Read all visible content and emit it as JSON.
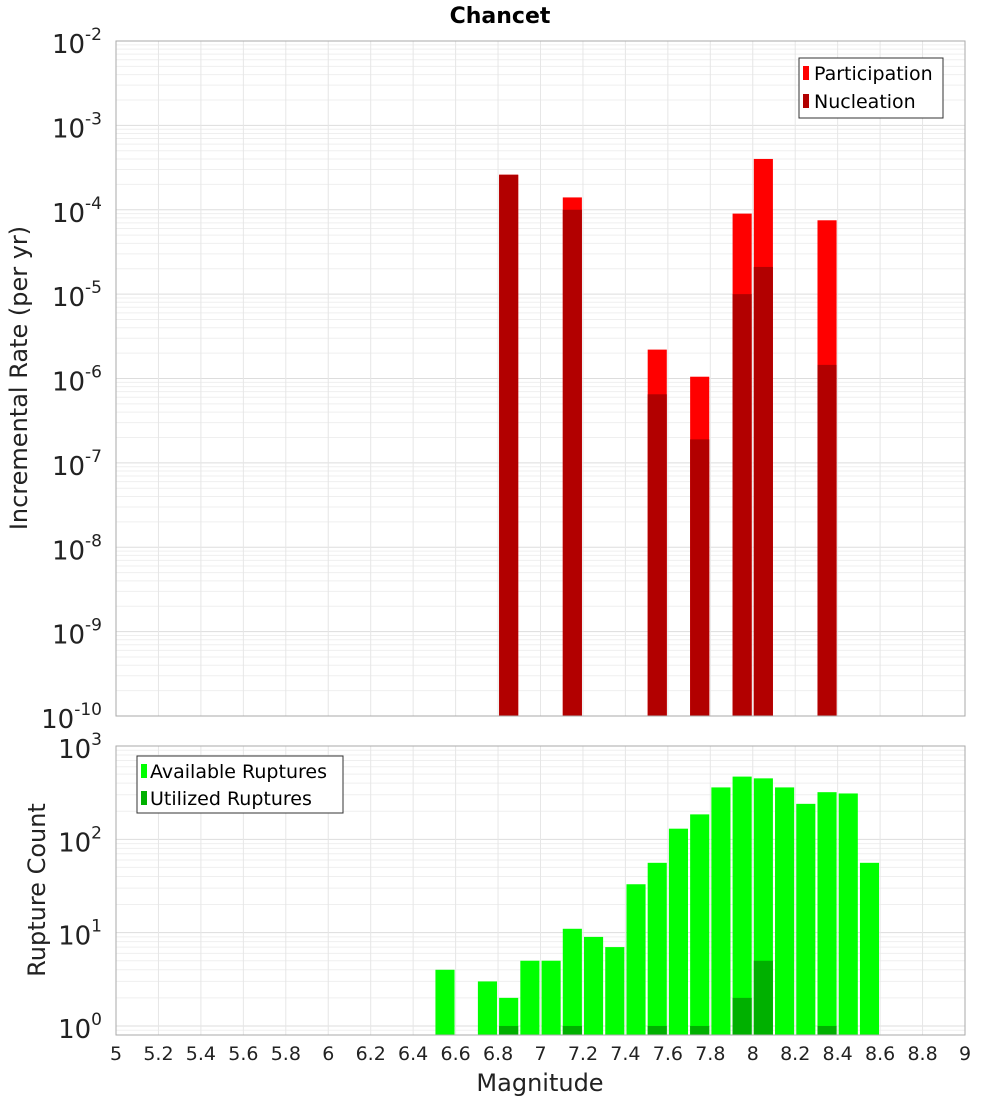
{
  "title": "Chancet",
  "chart_data": [
    {
      "type": "bar",
      "ylabel": "Incremental Rate (per yr)",
      "yscale": "log",
      "ylim": [
        1e-10,
        0.01
      ],
      "yticks": [
        {
          "base": "10",
          "exp": "-10"
        },
        {
          "base": "10",
          "exp": "-9"
        },
        {
          "base": "10",
          "exp": "-8"
        },
        {
          "base": "10",
          "exp": "-7"
        },
        {
          "base": "10",
          "exp": "-6"
        },
        {
          "base": "10",
          "exp": "-5"
        },
        {
          "base": "10",
          "exp": "-4"
        },
        {
          "base": "10",
          "exp": "-3"
        },
        {
          "base": "10",
          "exp": "-2"
        }
      ],
      "legend_position": "top-right",
      "series": [
        {
          "name": "Participation",
          "color": "#ff0000",
          "x": [
            6.85,
            7.15,
            7.55,
            7.75,
            7.95,
            8.05,
            8.35
          ],
          "values": [
            0.00026,
            0.00014,
            2.2e-06,
            1.05e-06,
            9e-05,
            0.0004,
            7.5e-05
          ]
        },
        {
          "name": "Nucleation",
          "color": "#b20000",
          "x": [
            6.85,
            7.15,
            7.55,
            7.75,
            7.95,
            8.05,
            8.35
          ],
          "values": [
            0.00026,
            0.0001,
            6.5e-07,
            1.9e-07,
            1e-05,
            2.1e-05,
            1.45e-06
          ]
        }
      ]
    },
    {
      "type": "bar",
      "xlabel": "Magnitude",
      "ylabel": "Rupture Count",
      "xlim": [
        5,
        9
      ],
      "xticks": [
        "5",
        "5.2",
        "5.4",
        "5.6",
        "5.8",
        "6",
        "6.2",
        "6.4",
        "6.6",
        "6.8",
        "7",
        "7.2",
        "7.4",
        "7.6",
        "7.8",
        "8",
        "8.2",
        "8.4",
        "8.6",
        "8.8",
        "9"
      ],
      "yscale": "log",
      "ylim": [
        0.8,
        1000
      ],
      "yticks": [
        {
          "base": "10",
          "exp": "0"
        },
        {
          "base": "10",
          "exp": "1"
        },
        {
          "base": "10",
          "exp": "2"
        },
        {
          "base": "10",
          "exp": "3"
        }
      ],
      "legend_position": "top-left",
      "series": [
        {
          "name": "Available Ruptures",
          "color": "#00ff00",
          "x": [
            6.55,
            6.75,
            6.85,
            6.95,
            7.05,
            7.15,
            7.25,
            7.35,
            7.45,
            7.55,
            7.65,
            7.75,
            7.85,
            7.95,
            8.05,
            8.15,
            8.25,
            8.35,
            8.45,
            8.55
          ],
          "values": [
            4,
            3,
            2,
            5,
            5,
            11,
            9,
            7,
            33,
            56,
            130,
            185,
            360,
            470,
            450,
            360,
            240,
            320,
            310,
            56
          ]
        },
        {
          "name": "Utilized Ruptures",
          "color": "#00b000",
          "x": [
            6.85,
            7.15,
            7.55,
            7.75,
            7.95,
            8.05,
            8.35
          ],
          "values": [
            1,
            1,
            1,
            1,
            2,
            5,
            1
          ]
        }
      ]
    }
  ]
}
